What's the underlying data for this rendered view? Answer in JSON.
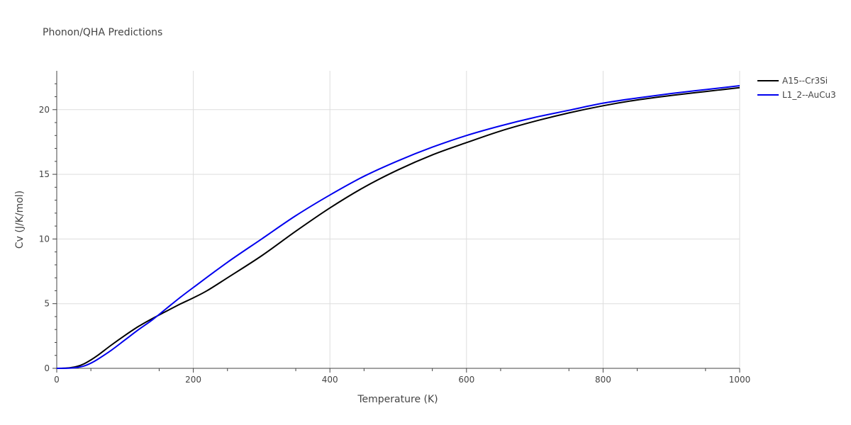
{
  "chart_data": {
    "type": "line",
    "title": "Phonon/QHA Predictions",
    "xlabel": "Temperature (K)",
    "ylabel": "Cv (J/K/mol)",
    "xlim": [
      0,
      1000
    ],
    "ylim": [
      0,
      23
    ],
    "x_ticks": [
      0,
      200,
      400,
      600,
      800,
      1000
    ],
    "y_ticks": [
      0,
      5,
      10,
      15,
      20
    ],
    "x_tick_labels": [
      "0",
      "200",
      "400",
      "600",
      "800",
      "1000"
    ],
    "y_tick_labels": [
      "0",
      "5",
      "10",
      "15",
      "20"
    ],
    "grid": true,
    "legend_position": "top-right",
    "series": [
      {
        "name": "A15--Cr3Si",
        "color": "#000000",
        "x": [
          0,
          10,
          20,
          30,
          40,
          50,
          60,
          80,
          100,
          120,
          140,
          160,
          180,
          200,
          220,
          250,
          300,
          350,
          400,
          450,
          500,
          550,
          600,
          650,
          700,
          750,
          800,
          850,
          900,
          950,
          1000
        ],
        "y": [
          0,
          0.01,
          0.05,
          0.15,
          0.35,
          0.65,
          1.0,
          1.8,
          2.55,
          3.25,
          3.85,
          4.4,
          4.95,
          5.45,
          6.0,
          7.0,
          8.7,
          10.6,
          12.4,
          14.0,
          15.35,
          16.5,
          17.45,
          18.35,
          19.1,
          19.75,
          20.3,
          20.75,
          21.1,
          21.4,
          21.7
        ]
      },
      {
        "name": "L1_2--AuCu3",
        "color": "#0000ee",
        "x": [
          0,
          10,
          20,
          30,
          40,
          50,
          60,
          80,
          100,
          120,
          140,
          160,
          180,
          200,
          250,
          300,
          350,
          400,
          450,
          500,
          550,
          600,
          650,
          700,
          750,
          800,
          850,
          900,
          950,
          1000
        ],
        "y": [
          0,
          0.005,
          0.02,
          0.07,
          0.18,
          0.4,
          0.7,
          1.4,
          2.2,
          3.0,
          3.75,
          4.6,
          5.45,
          6.25,
          8.2,
          10.0,
          11.8,
          13.4,
          14.85,
          16.05,
          17.1,
          18.0,
          18.75,
          19.4,
          19.95,
          20.5,
          20.9,
          21.25,
          21.55,
          21.85
        ]
      }
    ]
  }
}
